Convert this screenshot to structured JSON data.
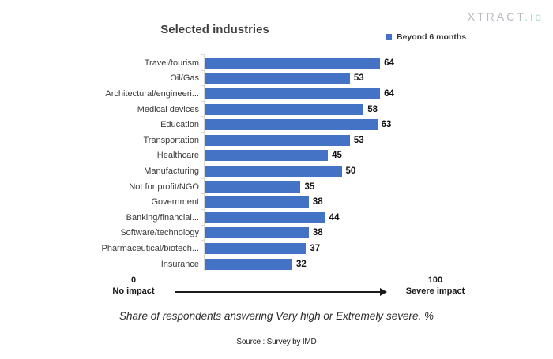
{
  "brand": {
    "name": "XTRACT",
    "suffix": ".io",
    "name_color": "#b4babf",
    "suffix_color": "#a6d9c3"
  },
  "chart_data": {
    "type": "bar",
    "orientation": "horizontal",
    "title": "Selected industries",
    "categories": [
      "Travel/tourism",
      "Oil/Gas",
      "Architectural/engineeri...",
      "Medical devices",
      "Education",
      "Transportation",
      "Healthcare",
      "Manufacturing",
      "Not for profit/NGO",
      "Government",
      "Banking/financial...",
      "Software/technology",
      "Pharmaceutical/biotech...",
      "Insurance"
    ],
    "series": [
      {
        "name": "Beyond 6 months",
        "color": "#4472c4",
        "values": [
          64,
          53,
          64,
          58,
          63,
          53,
          45,
          50,
          35,
          38,
          44,
          38,
          37,
          32
        ]
      }
    ],
    "xlim": [
      0,
      100
    ],
    "grid": false,
    "value_labels": true,
    "legend_position": "top-right",
    "axis_annotations": {
      "min_value": "0",
      "min_label": "No impact",
      "max_value": "100",
      "max_label": "Severe impact"
    },
    "caption": "Share of respondents answering Very high or Extremely severe, %",
    "source": "Source : Survey by IMD"
  }
}
